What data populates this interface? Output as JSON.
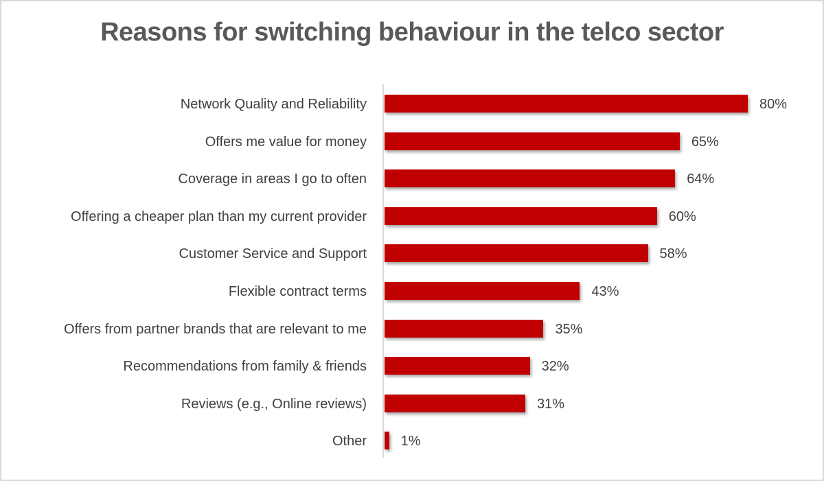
{
  "chart_data": {
    "type": "bar",
    "orientation": "horizontal",
    "title": "Reasons for switching behaviour in the telco sector",
    "xlabel": "",
    "ylabel": "",
    "categories": [
      "Network Quality and Reliability",
      "Offers me value for money",
      "Coverage in areas I go to often",
      "Offering a cheaper plan than my current provider",
      "Customer Service and Support",
      "Flexible contract terms",
      "Offers from partner brands that are relevant to me",
      "Recommendations from family & friends",
      "Reviews (e.g., Online reviews)",
      "Other"
    ],
    "values": [
      80,
      65,
      64,
      60,
      58,
      43,
      35,
      32,
      31,
      1
    ],
    "value_labels": [
      "80%",
      "65%",
      "64%",
      "60%",
      "58%",
      "43%",
      "35%",
      "32%",
      "31%",
      "1%"
    ],
    "unit": "%",
    "xlim": [
      0,
      80
    ],
    "grid": false,
    "legend": "none",
    "bar_color": "#c00000"
  }
}
